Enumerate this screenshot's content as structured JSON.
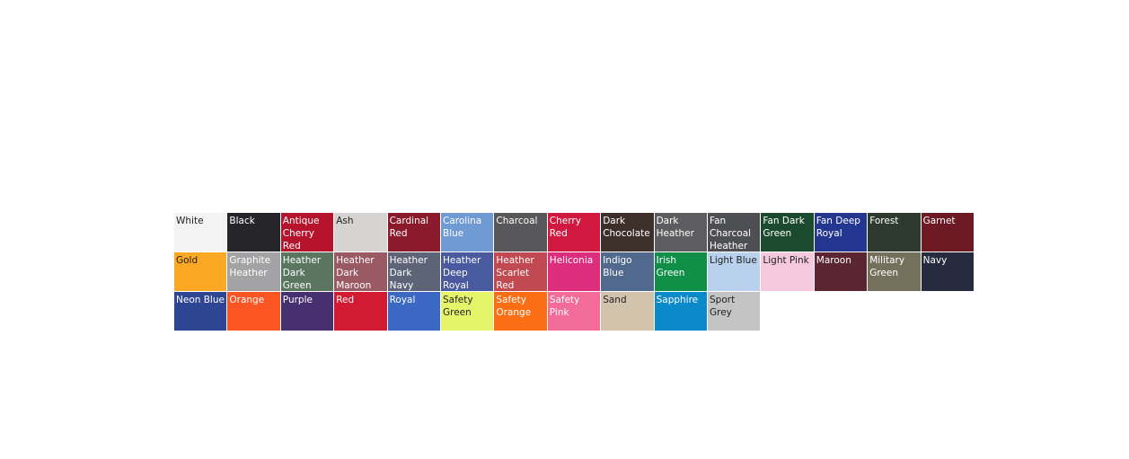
{
  "swatches": [
    {
      "label": "White",
      "color": "#f3f3f3",
      "text": "dark"
    },
    {
      "label": "Black",
      "color": "#25252a",
      "text": "light"
    },
    {
      "label": "Antique Cherry Red",
      "color": "#b5142c",
      "text": "light"
    },
    {
      "label": "Ash",
      "color": "#d6d4d2",
      "text": "dark"
    },
    {
      "label": "Cardinal Red",
      "color": "#8a1a2c",
      "text": "light"
    },
    {
      "label": "Carolina Blue",
      "color": "#6f9ad4",
      "text": "light"
    },
    {
      "label": "Charcoal",
      "color": "#58585a",
      "text": "light"
    },
    {
      "label": "Cherry Red",
      "color": "#d1183f",
      "text": "light"
    },
    {
      "label": "Dark Chocolate",
      "color": "#3d302b",
      "text": "light"
    },
    {
      "label": "Dark Heather",
      "color": "#5d5d60",
      "text": "light"
    },
    {
      "label": "Fan Charcoal Heather",
      "color": "#4e4f52",
      "text": "light"
    },
    {
      "label": "Fan Dark Green",
      "color": "#1c4a2f",
      "text": "light"
    },
    {
      "label": "Fan Deep Royal",
      "color": "#243790",
      "text": "light"
    },
    {
      "label": "Forest",
      "color": "#2f3a2f",
      "text": "light"
    },
    {
      "label": "Garnet",
      "color": "#6e1a24",
      "text": "light"
    },
    {
      "label": "Gold",
      "color": "#fba824",
      "text": "dark"
    },
    {
      "label": "Graphite Heather",
      "color": "#a3a3a5",
      "text": "light"
    },
    {
      "label": "Heather Dark Green",
      "color": "#5a7660",
      "text": "light"
    },
    {
      "label": "Heather Dark Maroon",
      "color": "#9a5a64",
      "text": "light"
    },
    {
      "label": "Heather Dark Navy",
      "color": "#5e6478",
      "text": "light"
    },
    {
      "label": "Heather Deep Royal",
      "color": "#4a5a9e",
      "text": "light"
    },
    {
      "label": "Heather Scarlet Red",
      "color": "#c14a52",
      "text": "light"
    },
    {
      "label": "Heliconia",
      "color": "#dd2e7e",
      "text": "light"
    },
    {
      "label": "Indigo Blue",
      "color": "#51698c",
      "text": "light"
    },
    {
      "label": "Irish Green",
      "color": "#0f8f47",
      "text": "light"
    },
    {
      "label": "Light Blue",
      "color": "#b9d1ec",
      "text": "dark"
    },
    {
      "label": "Light Pink",
      "color": "#f6c8de",
      "text": "dark"
    },
    {
      "label": "Maroon",
      "color": "#5c2532",
      "text": "light"
    },
    {
      "label": "Military Green",
      "color": "#75705c",
      "text": "light"
    },
    {
      "label": "Navy",
      "color": "#262b40",
      "text": "light"
    },
    {
      "label": "Neon Blue",
      "color": "#2e4594",
      "text": "light"
    },
    {
      "label": "Orange",
      "color": "#fb5524",
      "text": "light"
    },
    {
      "label": "Purple",
      "color": "#46306f",
      "text": "light"
    },
    {
      "label": "Red",
      "color": "#d21a33",
      "text": "light"
    },
    {
      "label": "Royal",
      "color": "#3a68c2",
      "text": "light"
    },
    {
      "label": "Safety Green",
      "color": "#e6f46a",
      "text": "dark"
    },
    {
      "label": "Safety Orange",
      "color": "#fc6e14",
      "text": "light"
    },
    {
      "label": "Safety Pink",
      "color": "#f36b98",
      "text": "light"
    },
    {
      "label": "Sand",
      "color": "#d2c3ad",
      "text": "dark"
    },
    {
      "label": "Sapphire",
      "color": "#0a8ac8",
      "text": "light"
    },
    {
      "label": "Sport Grey",
      "color": "#c4c4c4",
      "text": "dark"
    }
  ]
}
